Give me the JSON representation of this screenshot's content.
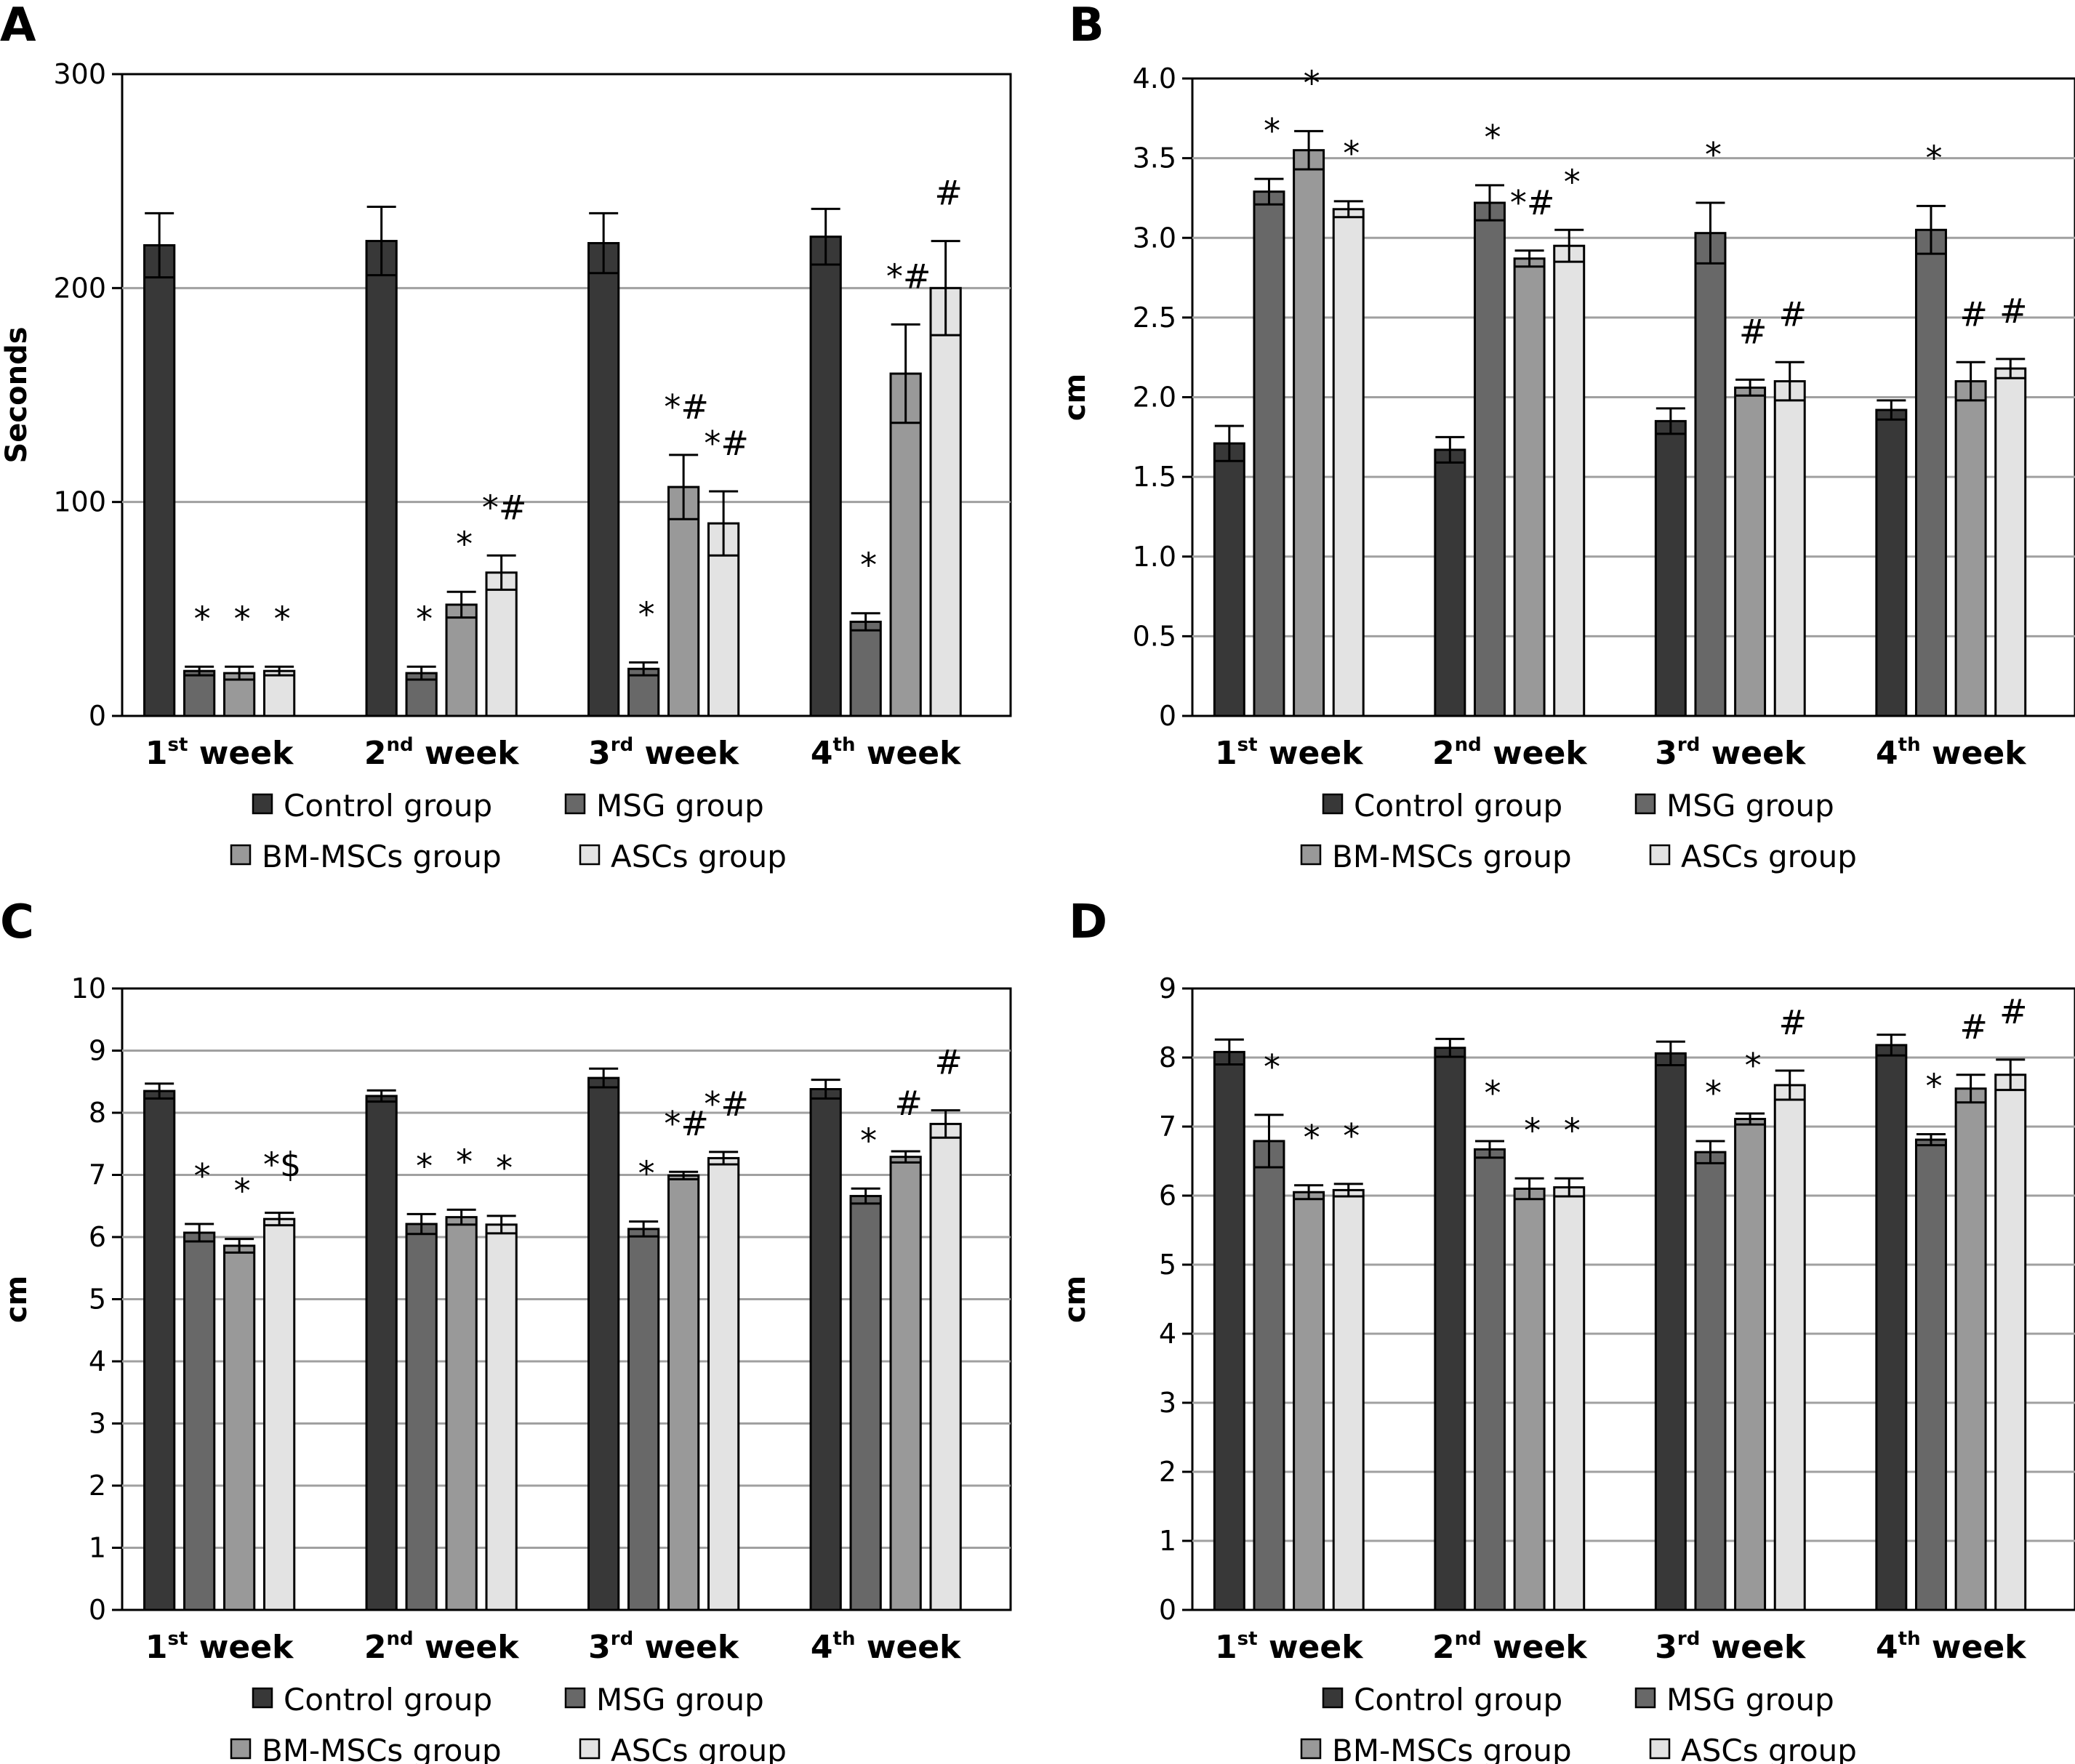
{
  "legend": {
    "groups": [
      {
        "name": "Control group",
        "color": "#383838"
      },
      {
        "name": "MSG group",
        "color": "#686868"
      },
      {
        "name": "BM-MSCs group",
        "color": "#999999"
      },
      {
        "name": "ASCs group",
        "color": "#e3e3e3"
      }
    ]
  },
  "gridline_color": "#a0a0a0",
  "chart_data": [
    {
      "panel": "A",
      "type": "bar",
      "title": "",
      "xlabel": "",
      "ylabel": "Seconds",
      "ylim": [
        0,
        300
      ],
      "yticks": [
        0,
        100,
        200,
        300
      ],
      "ytick_labels": [
        "0",
        "100",
        "200",
        "300"
      ],
      "grid": true,
      "legend_position": "bottom",
      "categories": [
        {
          "num": "1",
          "sup": "st",
          "rest": " week"
        },
        {
          "num": "2",
          "sup": "nd",
          "rest": " week"
        },
        {
          "num": "3",
          "sup": "rd",
          "rest": " week"
        },
        {
          "num": "4",
          "sup": "th",
          "rest": " week"
        }
      ],
      "series": [
        {
          "name": "Control group",
          "values": [
            220,
            222,
            221,
            224
          ],
          "errors": [
            15,
            16,
            14,
            13
          ],
          "annotations": [
            "",
            "",
            "",
            ""
          ]
        },
        {
          "name": "MSG group",
          "values": [
            21,
            20,
            22,
            44
          ],
          "errors": [
            2,
            3,
            3,
            4
          ],
          "annotations": [
            "*",
            "*",
            "*",
            "*"
          ]
        },
        {
          "name": "BM-MSCs group",
          "values": [
            20,
            52,
            107,
            160
          ],
          "errors": [
            3,
            6,
            15,
            23
          ],
          "annotations": [
            "*",
            "*",
            "*#",
            "*#"
          ]
        },
        {
          "name": "ASCs group",
          "values": [
            21,
            67,
            90,
            200
          ],
          "errors": [
            2,
            8,
            15,
            22
          ],
          "annotations": [
            "*",
            "*#",
            "*#",
            "#"
          ]
        }
      ]
    },
    {
      "panel": "B",
      "type": "bar",
      "title": "",
      "xlabel": "",
      "ylabel": "cm",
      "ylim": [
        0,
        4.0
      ],
      "yticks": [
        0,
        0.5,
        1.0,
        1.5,
        2.0,
        2.5,
        3.0,
        3.5,
        4.0
      ],
      "ytick_labels": [
        "0",
        "0.5",
        "1.0",
        "1.5",
        "2.0",
        "2.5",
        "3.0",
        "3.5",
        "4.0"
      ],
      "grid": true,
      "legend_position": "bottom",
      "categories": [
        {
          "num": "1",
          "sup": "st",
          "rest": " week"
        },
        {
          "num": "2",
          "sup": "nd",
          "rest": " week"
        },
        {
          "num": "3",
          "sup": "rd",
          "rest": " week"
        },
        {
          "num": "4",
          "sup": "th",
          "rest": " week"
        }
      ],
      "series": [
        {
          "name": "Control group",
          "values": [
            1.71,
            1.67,
            1.85,
            1.92
          ],
          "errors": [
            0.11,
            0.08,
            0.08,
            0.06
          ],
          "annotations": [
            "",
            "",
            "",
            ""
          ]
        },
        {
          "name": "MSG group",
          "values": [
            3.29,
            3.22,
            3.03,
            3.05
          ],
          "errors": [
            0.08,
            0.11,
            0.19,
            0.15
          ],
          "annotations": [
            "*",
            "*",
            "*",
            "*"
          ]
        },
        {
          "name": "BM-MSCs group",
          "values": [
            3.55,
            2.87,
            2.06,
            2.1
          ],
          "errors": [
            0.12,
            0.05,
            0.05,
            0.12
          ],
          "annotations": [
            "*",
            "*#",
            "#",
            "#"
          ]
        },
        {
          "name": "ASCs group",
          "values": [
            3.18,
            2.95,
            2.1,
            2.18
          ],
          "errors": [
            0.05,
            0.1,
            0.12,
            0.06
          ],
          "annotations": [
            "*",
            "*",
            "#",
            "#"
          ]
        }
      ]
    },
    {
      "panel": "C",
      "type": "bar",
      "title": "",
      "xlabel": "",
      "ylabel": "cm",
      "ylim": [
        0,
        10
      ],
      "yticks": [
        0,
        1,
        2,
        3,
        4,
        5,
        6,
        7,
        8,
        9,
        10
      ],
      "ytick_labels": [
        "0",
        "1",
        "2",
        "3",
        "4",
        "5",
        "6",
        "7",
        "8",
        "9",
        "10"
      ],
      "grid": true,
      "legend_position": "bottom",
      "categories": [
        {
          "num": "1",
          "sup": "st",
          "rest": " week"
        },
        {
          "num": "2",
          "sup": "nd",
          "rest": " week"
        },
        {
          "num": "3",
          "sup": "rd",
          "rest": " week"
        },
        {
          "num": "4",
          "sup": "th",
          "rest": " week"
        }
      ],
      "series": [
        {
          "name": "Control group",
          "values": [
            8.35,
            8.27,
            8.56,
            8.38
          ],
          "errors": [
            0.12,
            0.09,
            0.15,
            0.15
          ],
          "annotations": [
            "",
            "",
            "",
            ""
          ]
        },
        {
          "name": "MSG group",
          "values": [
            6.07,
            6.21,
            6.13,
            6.66
          ],
          "errors": [
            0.14,
            0.16,
            0.12,
            0.12
          ],
          "annotations": [
            "*",
            "*",
            "*",
            "*"
          ]
        },
        {
          "name": "BM-MSCs group",
          "values": [
            5.86,
            6.32,
            6.99,
            7.29
          ],
          "errors": [
            0.11,
            0.12,
            0.06,
            0.09
          ],
          "annotations": [
            "*",
            "*",
            "*#",
            "#"
          ]
        },
        {
          "name": "ASCs group",
          "values": [
            6.29,
            6.2,
            7.27,
            7.82
          ],
          "errors": [
            0.1,
            0.14,
            0.1,
            0.22
          ],
          "annotations": [
            "*$",
            "*",
            "*#",
            "#"
          ]
        }
      ]
    },
    {
      "panel": "D",
      "type": "bar",
      "title": "",
      "xlabel": "",
      "ylabel": "cm",
      "ylim": [
        0,
        9
      ],
      "yticks": [
        0,
        1,
        2,
        3,
        4,
        5,
        6,
        7,
        8,
        9
      ],
      "ytick_labels": [
        "0",
        "1",
        "2",
        "3",
        "4",
        "5",
        "6",
        "7",
        "8",
        "9"
      ],
      "grid": true,
      "legend_position": "bottom",
      "categories": [
        {
          "num": "1",
          "sup": "st",
          "rest": " week"
        },
        {
          "num": "2",
          "sup": "nd",
          "rest": " week"
        },
        {
          "num": "3",
          "sup": "rd",
          "rest": " week"
        },
        {
          "num": "4",
          "sup": "th",
          "rest": " week"
        }
      ],
      "series": [
        {
          "name": "Control group",
          "values": [
            8.08,
            8.14,
            8.06,
            8.18
          ],
          "errors": [
            0.18,
            0.13,
            0.17,
            0.15
          ],
          "annotations": [
            "",
            "",
            "",
            ""
          ]
        },
        {
          "name": "MSG group",
          "values": [
            6.79,
            6.67,
            6.63,
            6.81
          ],
          "errors": [
            0.38,
            0.12,
            0.16,
            0.08
          ],
          "annotations": [
            "*",
            "*",
            "*",
            "*"
          ]
        },
        {
          "name": "BM-MSCs group",
          "values": [
            6.05,
            6.1,
            7.11,
            7.55
          ],
          "errors": [
            0.1,
            0.15,
            0.08,
            0.2
          ],
          "annotations": [
            "*",
            "*",
            "*",
            "#"
          ]
        },
        {
          "name": "ASCs group",
          "values": [
            6.08,
            6.12,
            7.6,
            7.75
          ],
          "errors": [
            0.09,
            0.13,
            0.21,
            0.22
          ],
          "annotations": [
            "*",
            "*",
            "#",
            "#"
          ]
        }
      ]
    }
  ]
}
